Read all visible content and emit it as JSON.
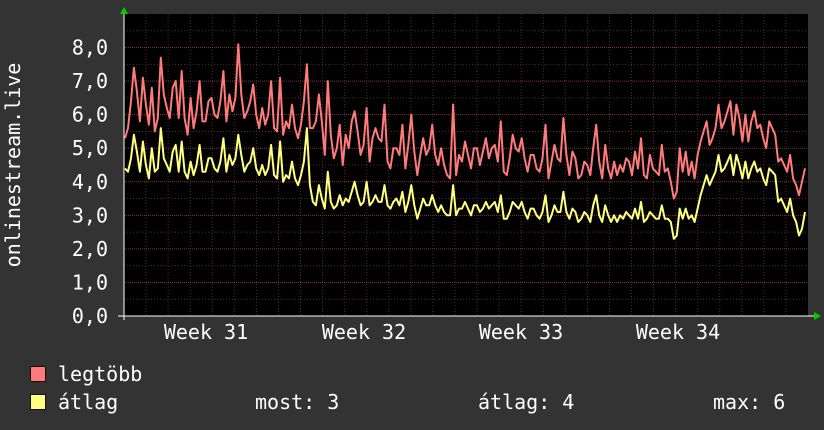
{
  "chart_data": {
    "type": "line",
    "ylabel": "onlinestream.live",
    "ylim": [
      0,
      9
    ],
    "yticks": [
      "0,0",
      "1,0",
      "2,0",
      "3,0",
      "4,0",
      "5,0",
      "6,0",
      "7,0",
      "8,0"
    ],
    "x_week_labels": [
      "Week 31",
      "Week 32",
      "Week 33",
      "Week 34"
    ],
    "grid": true,
    "series": [
      {
        "name": "legtöbb",
        "color": "#ff7b7b",
        "values": [
          5.3,
          5.6,
          6.4,
          7.4,
          6.7,
          5.8,
          7.1,
          6.3,
          5.7,
          6.8,
          5.5,
          5.9,
          7.7,
          6.6,
          6.2,
          5.9,
          6.8,
          7.0,
          5.9,
          7.3,
          5.9,
          5.4,
          6.5,
          5.6,
          6.1,
          7.0,
          5.8,
          5.8,
          6.4,
          6.5,
          6.0,
          5.9,
          6.4,
          7.3,
          5.8,
          6.6,
          6.1,
          6.5,
          8.1,
          6.6,
          5.9,
          6.1,
          6.4,
          6.9,
          6.0,
          5.6,
          6.2,
          5.7,
          6.0,
          7.0,
          5.6,
          5.5,
          7.1,
          5.4,
          5.8,
          5.6,
          6.3,
          5.6,
          5.3,
          5.7,
          6.4,
          7.5,
          5.6,
          5.6,
          5.8,
          6.6,
          5.8,
          4.8,
          7.0,
          5.4,
          4.7,
          5.0,
          5.7,
          4.5,
          5.4,
          5.0,
          5.8,
          6.1,
          5.5,
          4.8,
          5.1,
          6.2,
          4.6,
          5.3,
          5.6,
          5.3,
          5.2,
          6.3,
          4.6,
          4.4,
          5.0,
          5.0,
          4.8,
          5.7,
          4.4,
          5.1,
          6.0,
          4.9,
          4.2,
          4.8,
          5.3,
          4.8,
          5.0,
          5.7,
          4.8,
          4.5,
          5.0,
          4.5,
          4.2,
          4.1,
          6.3,
          4.2,
          4.8,
          4.6,
          5.2,
          4.8,
          4.4,
          5.0,
          5.0,
          4.5,
          4.9,
          5.3,
          4.7,
          5.0,
          5.1,
          4.6,
          5.8,
          4.3,
          4.2,
          4.7,
          5.4,
          5.0,
          4.9,
          5.3,
          4.7,
          4.3,
          4.8,
          4.8,
          4.4,
          4.3,
          4.7,
          5.7,
          4.1,
          4.6,
          5.1,
          4.7,
          4.6,
          5.9,
          4.8,
          4.2,
          4.9,
          4.7,
          4.1,
          4.2,
          4.6,
          4.5,
          4.2,
          5.0,
          5.7,
          4.6,
          4.1,
          5.1,
          4.4,
          4.1,
          4.6,
          4.2,
          4.5,
          4.3,
          4.7,
          4.6,
          4.2,
          4.9,
          4.4,
          5.3,
          4.2,
          4.1,
          4.8,
          4.4,
          4.3,
          4.2,
          5.1,
          4.3,
          4.4,
          4.0,
          3.5,
          3.7,
          5.0,
          4.3,
          4.9,
          4.2,
          4.6,
          4.1,
          4.8,
          5.2,
          5.5,
          5.8,
          5.1,
          5.3,
          5.6,
          6.3,
          5.6,
          5.8,
          6.1,
          6.4,
          5.4,
          6.3,
          5.9,
          5.2,
          6.0,
          5.2,
          5.8,
          6.1,
          5.6,
          5.7,
          5.3,
          5.0,
          5.8,
          5.6,
          5.4,
          4.6,
          4.7,
          4.5,
          4.3,
          4.8,
          4.1,
          3.9,
          3.6,
          4.0,
          4.4
        ]
      },
      {
        "name": "átlag",
        "color": "#ffff80",
        "values": [
          4.4,
          4.3,
          4.7,
          5.4,
          4.9,
          4.3,
          5.2,
          4.5,
          4.1,
          5.0,
          4.3,
          4.4,
          5.6,
          4.7,
          4.5,
          4.3,
          4.9,
          5.1,
          4.3,
          5.2,
          4.3,
          4.1,
          4.6,
          4.2,
          4.5,
          5.1,
          4.3,
          4.3,
          4.7,
          4.7,
          4.4,
          4.3,
          4.6,
          5.3,
          4.3,
          4.8,
          4.5,
          4.7,
          5.4,
          4.8,
          4.3,
          4.5,
          4.6,
          5.0,
          4.4,
          4.2,
          4.5,
          4.2,
          4.4,
          5.1,
          4.2,
          4.1,
          5.2,
          4.0,
          4.2,
          4.1,
          4.6,
          4.1,
          3.9,
          4.2,
          4.6,
          5.6,
          3.9,
          3.4,
          3.3,
          3.9,
          3.5,
          3.2,
          4.3,
          3.4,
          3.2,
          3.3,
          3.6,
          3.3,
          3.5,
          3.4,
          3.7,
          4.0,
          3.6,
          3.3,
          3.4,
          4.0,
          3.3,
          3.4,
          3.6,
          3.4,
          3.4,
          3.9,
          3.3,
          3.2,
          3.4,
          3.5,
          3.3,
          3.7,
          3.1,
          3.4,
          3.9,
          3.3,
          2.9,
          3.2,
          3.5,
          3.3,
          3.3,
          3.6,
          3.3,
          3.1,
          3.3,
          3.1,
          3.0,
          3.0,
          3.9,
          3.0,
          3.2,
          3.2,
          3.4,
          3.2,
          3.0,
          3.3,
          3.3,
          3.1,
          3.2,
          3.4,
          3.2,
          3.3,
          3.4,
          3.1,
          3.6,
          2.9,
          2.9,
          3.1,
          3.4,
          3.3,
          3.2,
          3.4,
          3.1,
          2.9,
          3.2,
          3.2,
          3.0,
          2.9,
          3.1,
          3.6,
          2.8,
          3.0,
          3.3,
          3.1,
          3.1,
          3.7,
          3.1,
          2.9,
          3.2,
          3.1,
          2.8,
          2.9,
          3.1,
          3.0,
          2.8,
          3.3,
          3.6,
          3.0,
          2.8,
          3.3,
          3.0,
          2.8,
          3.0,
          2.8,
          3.0,
          2.9,
          3.1,
          3.0,
          2.9,
          3.2,
          2.9,
          3.4,
          2.8,
          2.9,
          3.1,
          3.0,
          2.9,
          2.9,
          3.3,
          2.9,
          2.9,
          2.8,
          2.3,
          2.4,
          3.2,
          2.9,
          3.2,
          2.9,
          3.0,
          2.8,
          3.2,
          3.6,
          3.9,
          4.2,
          3.9,
          4.1,
          4.3,
          4.8,
          4.3,
          4.4,
          4.6,
          4.8,
          4.2,
          4.8,
          4.5,
          4.1,
          4.6,
          4.1,
          4.4,
          4.6,
          4.3,
          4.4,
          4.1,
          3.9,
          4.4,
          4.3,
          4.2,
          3.4,
          3.5,
          3.3,
          3.1,
          3.5,
          3.0,
          2.8,
          2.4,
          2.6,
          3.1
        ]
      }
    ]
  },
  "legend": [
    {
      "label": "legtöbb",
      "color": "#ff7b7b"
    },
    {
      "label": "átlag",
      "color": "#ffff80"
    }
  ],
  "stats": {
    "most": "most: 3",
    "atlag": "átlag: 4",
    "max": "max: 6"
  }
}
